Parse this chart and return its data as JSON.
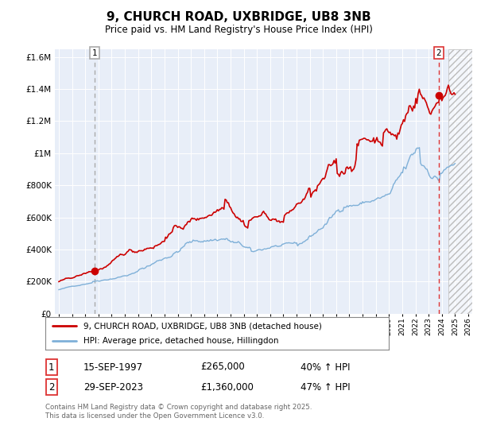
{
  "title": "9, CHURCH ROAD, UXBRIDGE, UB8 3NB",
  "subtitle": "Price paid vs. HM Land Registry's House Price Index (HPI)",
  "legend_line1": "9, CHURCH ROAD, UXBRIDGE, UB8 3NB (detached house)",
  "legend_line2": "HPI: Average price, detached house, Hillingdon",
  "footnote": "Contains HM Land Registry data © Crown copyright and database right 2025.\nThis data is licensed under the Open Government Licence v3.0.",
  "sale1_label": "1",
  "sale1_date": "15-SEP-1997",
  "sale1_price": "£265,000",
  "sale1_hpi": "40% ↑ HPI",
  "sale2_label": "2",
  "sale2_date": "29-SEP-2023",
  "sale2_price": "£1,360,000",
  "sale2_hpi": "47% ↑ HPI",
  "property_color": "#cc0000",
  "hpi_color": "#7fb0d8",
  "vline1_color": "#aaaaaa",
  "vline2_color": "#dd3333",
  "background_color": "#e8eef8",
  "hatch_color": "#cccccc",
  "ylim": [
    0,
    1650000
  ],
  "yticks": [
    0,
    200000,
    400000,
    600000,
    800000,
    1000000,
    1200000,
    1400000,
    1600000
  ],
  "xlim_start": 1994.7,
  "xlim_end": 2026.3,
  "sale1_year": 1997.71,
  "sale1_price_val": 265000,
  "sale2_year": 2023.75,
  "sale2_price_val": 1360000,
  "hatch_start": 2024.5,
  "hatch_end": 2026.3
}
